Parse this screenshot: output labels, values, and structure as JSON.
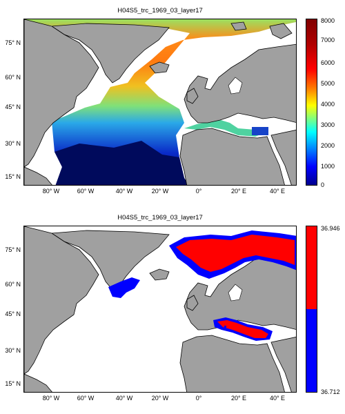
{
  "maps": [
    {
      "title": "H04S5_trc_1969_03_layer17",
      "colorbar_ticks": [
        "0",
        "1000",
        "2000",
        "3000",
        "4000",
        "5000",
        "6000",
        "7000",
        "8000"
      ],
      "colormap": "jet"
    },
    {
      "title": "H04S5_trc_1969_03_layer17",
      "colorbar_ticks": [
        "36.712",
        "36.946"
      ],
      "colormap": "blue-red binary",
      "colors": {
        "low": "#0000ff",
        "high": "#ff0000"
      }
    }
  ],
  "latitude_labels": [
    "75° N",
    "60° N",
    "45° N",
    "30° N",
    "15° N"
  ],
  "longitude_labels": [
    "80° W",
    "60° W",
    "40° W",
    "20° W",
    "0°",
    "20° E",
    "40° E"
  ],
  "colors": {
    "land": "#a0a0a0",
    "coast": "#000000",
    "background": "#ffffff"
  }
}
